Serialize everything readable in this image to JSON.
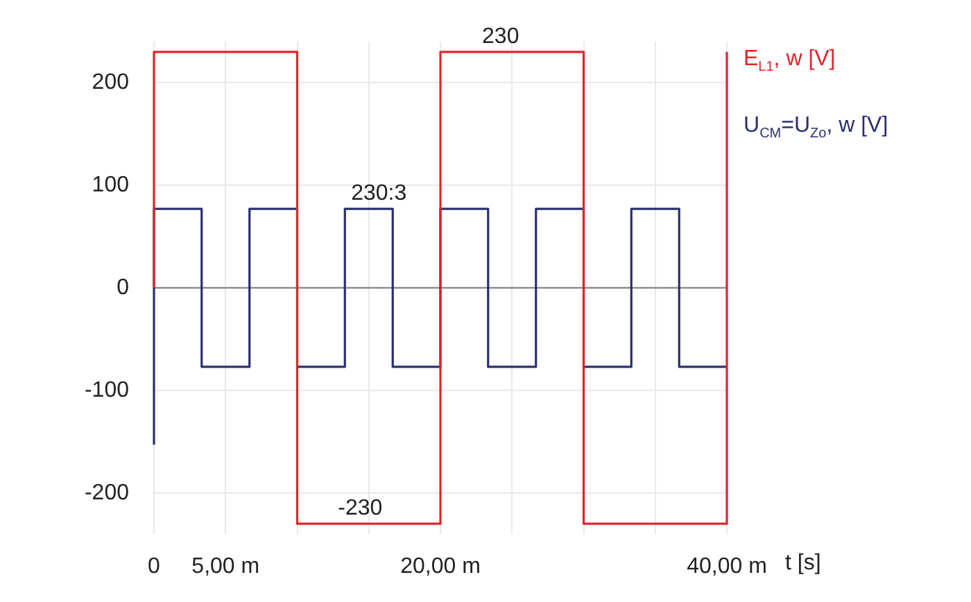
{
  "chart_data": {
    "type": "step",
    "xlabel": "t [s]",
    "series": [
      {
        "name": "E$_{L1}$, w [V]",
        "color": "#e0252b",
        "x": [
          0,
          0,
          10,
          20,
          30,
          40,
          40
        ],
        "values": [
          0,
          230,
          -230,
          230,
          -230,
          -230,
          230
        ]
      },
      {
        "name": "U$_{CM}$=U$_{Zo}$, w [V]",
        "color": "#2b2f6e",
        "x": [
          0,
          0,
          3.33,
          6.67,
          10,
          13.33,
          16.67,
          20,
          23.33,
          26.67,
          30,
          33.33,
          36.67,
          40
        ],
        "values": [
          -153,
          77,
          -77,
          77,
          -77,
          77,
          -77,
          77,
          -77,
          77,
          -77,
          77,
          -77,
          -77
        ]
      }
    ],
    "xlim": [
      0,
      40
    ],
    "xticks": [
      {
        "value": 0,
        "label": "0"
      },
      {
        "value": 5,
        "label": "5,00 m"
      },
      {
        "value": 10,
        "label": null
      },
      {
        "value": 15,
        "label": null
      },
      {
        "value": 20,
        "label": "20,00 m"
      },
      {
        "value": 25,
        "label": null
      },
      {
        "value": 30,
        "label": null
      },
      {
        "value": 35,
        "label": null
      },
      {
        "value": 40,
        "label": "40,00 m"
      }
    ],
    "ylim": [
      -240,
      240
    ],
    "yticks": [
      -200,
      -100,
      0,
      100,
      200
    ],
    "grid": true,
    "legend": "top right",
    "ref_lines": [
      {
        "axis": "y",
        "value": 0,
        "color": "#8c8c8c"
      }
    ],
    "annotations": [
      {
        "text": "230",
        "x": 24.2,
        "y": 230
      },
      {
        "text": "230:3",
        "x": 15.7,
        "y": 77
      },
      {
        "text": "-230",
        "x": 14.4,
        "y": -230
      }
    ]
  }
}
